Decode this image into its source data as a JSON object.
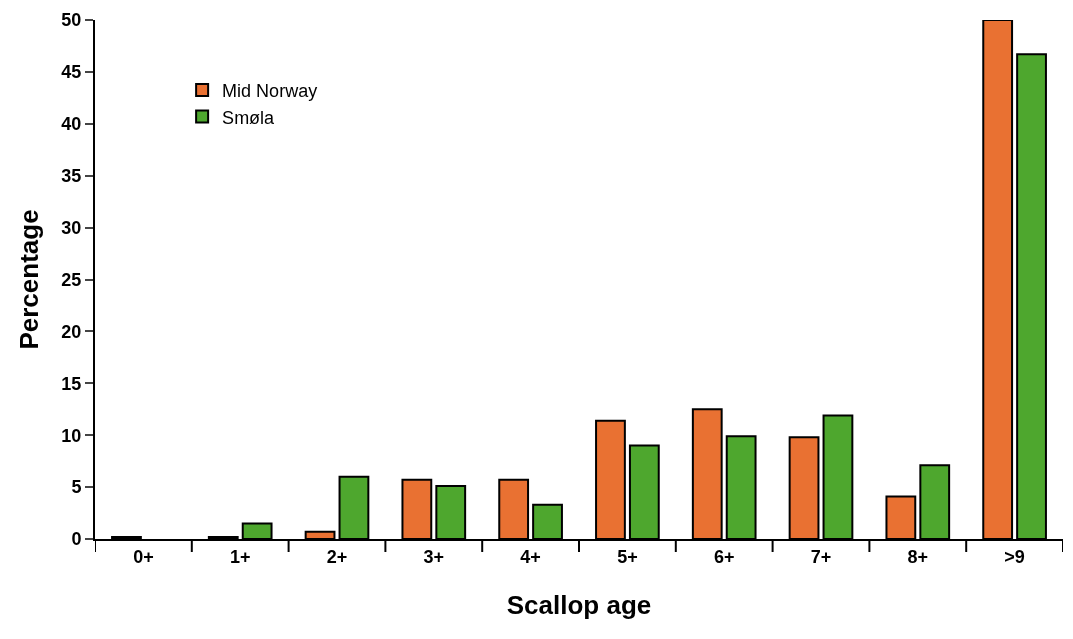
{
  "chart_data": {
    "type": "bar",
    "xlabel": "Scallop age",
    "ylabel": "Percentage",
    "categories": [
      "0+",
      "1+",
      "2+",
      "3+",
      "4+",
      "5+",
      "6+",
      "7+",
      "8+",
      ">9"
    ],
    "series": [
      {
        "name": "Mid Norway",
        "color": "#e97132",
        "values": [
          0.2,
          0.2,
          0.7,
          5.7,
          5.7,
          11.4,
          12.5,
          9.8,
          4.1,
          50
        ]
      },
      {
        "name": "Smøla",
        "color": "#4ea72e",
        "values": [
          null,
          1.5,
          6.0,
          5.1,
          3.3,
          9.0,
          9.9,
          11.9,
          7.1,
          46.7
        ]
      }
    ],
    "ylim": [
      0,
      50
    ],
    "yticks": [
      0,
      5,
      10,
      15,
      20,
      25,
      30,
      35,
      40,
      45,
      50
    ],
    "legend": "top left"
  }
}
